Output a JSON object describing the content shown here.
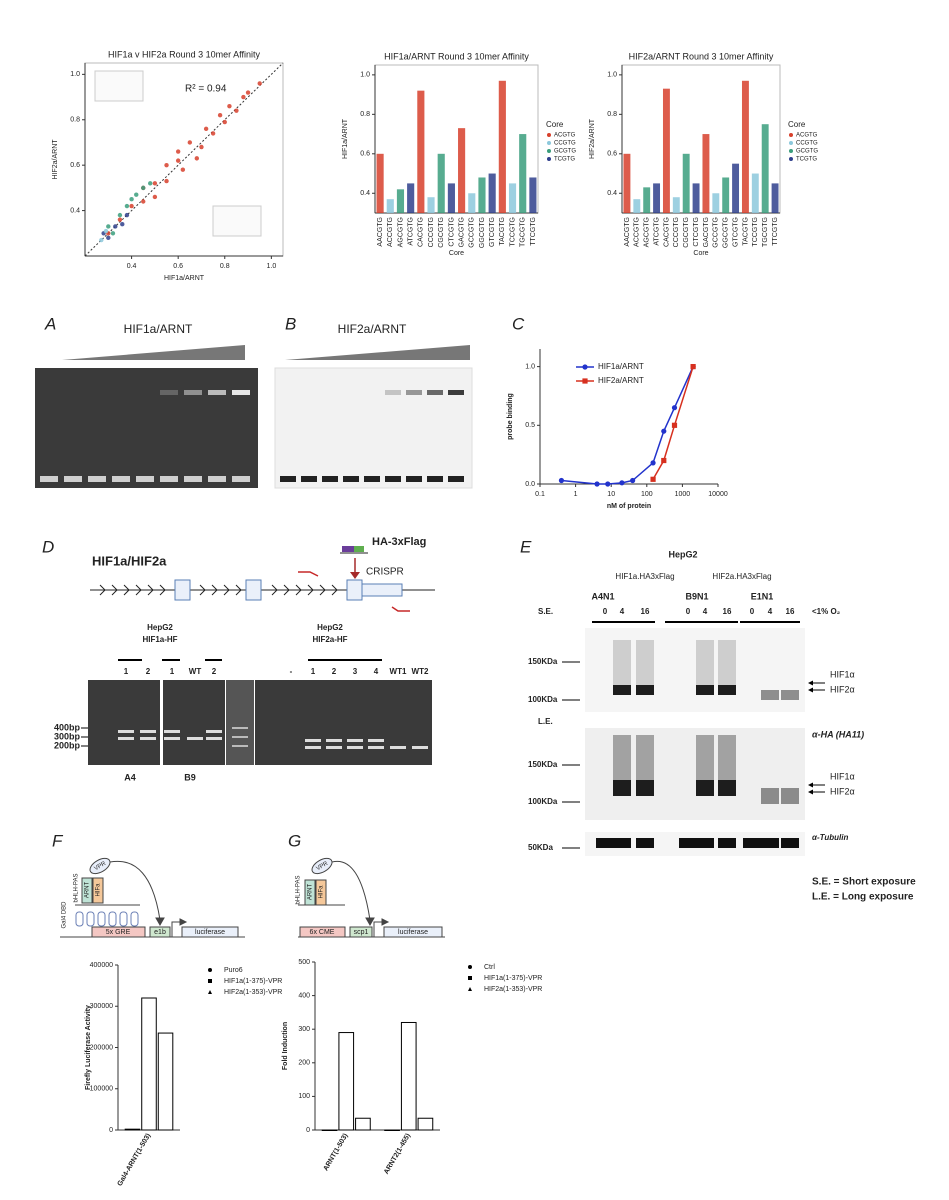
{
  "chart_data": [
    {
      "type": "scatter",
      "title": "HIF1a v HIF2a Round 3 10mer Affinity",
      "x_label": "HIF1a/ARNT",
      "y_label": "HIF2a/ARNT",
      "annotation": "R² = 0.94",
      "xlim": [
        0.2,
        1.05
      ],
      "ylim": [
        0.2,
        1.05
      ],
      "xticks": [
        0.4,
        0.6,
        0.8,
        {
          "value": 1,
          "label": "1.0"
        }
      ],
      "yticks": [
        0.4,
        0.6,
        0.8,
        {
          "value": 1,
          "label": "1.0"
        }
      ],
      "series": [
        {
          "color": "#d7402b",
          "x": [
            0.3,
            0.35,
            0.4,
            0.45,
            0.5,
            0.55,
            0.6,
            0.62,
            0.65,
            0.7,
            0.72,
            0.75,
            0.78,
            0.8,
            0.82,
            0.85,
            0.88,
            0.9,
            0.95,
            0.55,
            0.45,
            0.68,
            0.6,
            0.5
          ],
          "values": [
            0.3,
            0.36,
            0.42,
            0.44,
            0.52,
            0.53,
            0.62,
            0.58,
            0.7,
            0.68,
            0.76,
            0.74,
            0.82,
            0.79,
            0.86,
            0.84,
            0.9,
            0.92,
            0.96,
            0.6,
            0.5,
            0.63,
            0.66,
            0.46
          ]
        },
        {
          "color": "#3a9e7c",
          "x": [
            0.3,
            0.35,
            0.38,
            0.42,
            0.45,
            0.32,
            0.4,
            0.48
          ],
          "values": [
            0.33,
            0.38,
            0.42,
            0.47,
            0.5,
            0.3,
            0.45,
            0.52
          ]
        },
        {
          "color": "#2f3f8c",
          "x": [
            0.28,
            0.3,
            0.33,
            0.36,
            0.38
          ],
          "values": [
            0.3,
            0.28,
            0.33,
            0.34,
            0.38
          ]
        },
        {
          "color": "#8cc8dc",
          "x": [
            0.27,
            0.29
          ],
          "values": [
            0.27,
            0.31
          ]
        }
      ]
    },
    {
      "type": "strip",
      "title": "HIF1a/ARNT Round 3 10mer Affinity",
      "x_label": "Core",
      "y_label": "HIF1a/ARNT",
      "legend_title": "Core",
      "categories": [
        "AACGTG",
        "ACCGTG",
        "AGCGTG",
        "ATCGTG",
        "CACGTG",
        "CCCGTG",
        "CGCGTG",
        "CTCGTG",
        "GACGTG",
        "GCCGTG",
        "GGCGTG",
        "GTCGTG",
        "TACGTG",
        "TCCGTG",
        "TGCGTG",
        "TTCGTG"
      ],
      "ylim": [
        0.3,
        1.05
      ],
      "yticks": [
        0.4,
        0.6,
        0.8,
        {
          "value": 1,
          "label": "1.0"
        }
      ],
      "series": [
        {
          "name": "ACGTG",
          "color": "#d7402b",
          "values": [
            0.6,
            null,
            null,
            null,
            0.92,
            null,
            null,
            null,
            0.73,
            null,
            null,
            null,
            0.97,
            null,
            null,
            null
          ]
        },
        {
          "name": "CCGTG",
          "color": "#8cc8dc",
          "values": [
            null,
            0.37,
            null,
            null,
            null,
            0.38,
            null,
            null,
            null,
            0.4,
            null,
            null,
            null,
            0.45,
            null,
            null
          ]
        },
        {
          "name": "GCGTG",
          "color": "#3a9e7c",
          "values": [
            null,
            null,
            0.42,
            null,
            null,
            null,
            0.6,
            null,
            null,
            null,
            0.48,
            null,
            null,
            null,
            0.7,
            null
          ]
        },
        {
          "name": "TCGTG",
          "color": "#2f3f8c",
          "values": [
            null,
            null,
            null,
            0.45,
            null,
            null,
            null,
            0.45,
            null,
            null,
            null,
            0.5,
            null,
            null,
            null,
            0.48
          ]
        }
      ]
    },
    {
      "type": "strip",
      "title": "HIF2a/ARNT Round 3 10mer Affinity",
      "x_label": "Core",
      "y_label": "HIF2a/ARNT",
      "legend_title": "Core",
      "categories": [
        "AACGTG",
        "ACCGTG",
        "AGCGTG",
        "ATCGTG",
        "CACGTG",
        "CCCGTG",
        "CGCGTG",
        "CTCGTG",
        "GACGTG",
        "GCCGTG",
        "GGCGTG",
        "GTCGTG",
        "TACGTG",
        "TCCGTG",
        "TGCGTG",
        "TTCGTG"
      ],
      "ylim": [
        0.3,
        1.05
      ],
      "yticks": [
        0.4,
        0.6,
        0.8,
        {
          "value": 1,
          "label": "1.0"
        }
      ],
      "series": [
        {
          "name": "ACGTG",
          "color": "#d7402b",
          "values": [
            0.6,
            null,
            null,
            null,
            0.93,
            null,
            null,
            null,
            0.7,
            null,
            null,
            null,
            0.97,
            null,
            null,
            null
          ]
        },
        {
          "name": "CCGTG",
          "color": "#8cc8dc",
          "values": [
            null,
            0.37,
            null,
            null,
            null,
            0.38,
            null,
            null,
            null,
            0.4,
            null,
            null,
            null,
            0.5,
            null,
            null
          ]
        },
        {
          "name": "GCGTG",
          "color": "#3a9e7c",
          "values": [
            null,
            null,
            0.43,
            null,
            null,
            null,
            0.6,
            null,
            null,
            null,
            0.48,
            null,
            null,
            null,
            0.75,
            null
          ]
        },
        {
          "name": "TCGTG",
          "color": "#2f3f8c",
          "values": [
            null,
            null,
            null,
            0.45,
            null,
            null,
            null,
            0.45,
            null,
            null,
            null,
            0.55,
            null,
            null,
            null,
            0.45
          ]
        }
      ]
    },
    {
      "type": "line",
      "x_label": "nM of protein",
      "y_label": "probe binding",
      "xlog": true,
      "xlim": [
        0.1,
        10000
      ],
      "ylim": [
        0,
        1.15
      ],
      "xticks": [
        0.1,
        1,
        10,
        100,
        1000,
        10000
      ],
      "yticks": [
        {
          "value": 0,
          "label": "0.0"
        },
        0.5,
        {
          "value": 1,
          "label": "1.0"
        }
      ],
      "series": [
        {
          "name": "HIF1a/ARNT",
          "color": "#2233cc",
          "marker": "circle",
          "x": [
            0.4,
            4,
            8,
            20,
            40,
            150,
            300,
            600,
            2000
          ],
          "values": [
            0.03,
            0,
            0,
            0.01,
            0.03,
            0.18,
            0.45,
            0.65,
            1
          ]
        },
        {
          "name": "HIF2a/ARNT",
          "color": "#d7301f",
          "marker": "square",
          "x": [
            150,
            300,
            600,
            2000
          ],
          "values": [
            0.04,
            0.2,
            0.5,
            1
          ]
        }
      ]
    },
    {
      "type": "bar",
      "y_label": "Firefly Luciferase Activity",
      "categories": [
        "Gal4-ARNT(1-503)"
      ],
      "ylim": [
        0,
        400000
      ],
      "yticks": [
        0,
        100000,
        200000,
        300000,
        400000
      ],
      "series": [
        {
          "name": "Puro6",
          "color": "#000000",
          "marker": "circle",
          "values": [
            2000
          ]
        },
        {
          "name": "HIF1a(1-375)-VPR",
          "color": "#000000",
          "marker": "square",
          "values": [
            320000
          ]
        },
        {
          "name": "HIF2a(1-353)-VPR",
          "color": "#000000",
          "marker": "triangle",
          "values": [
            235000
          ]
        }
      ]
    },
    {
      "type": "bar",
      "y_label": "Fold Induction",
      "categories": [
        "ARNT(1-503)",
        "ARNT2(1-455)"
      ],
      "ylim": [
        0,
        500
      ],
      "yticks": [
        0,
        100,
        200,
        300,
        400,
        500
      ],
      "series": [
        {
          "name": "Ctrl",
          "color": "#000000",
          "marker": "circle",
          "values": [
            0,
            0
          ]
        },
        {
          "name": "HIF1a(1-375)-VPR",
          "color": "#000000",
          "marker": "square",
          "values": [
            290,
            320
          ]
        },
        {
          "name": "HIF2a(1-353)-VPR",
          "color": "#000000",
          "marker": "triangle",
          "values": [
            35,
            35
          ]
        }
      ]
    }
  ],
  "panel_labels": [
    "A",
    "B",
    "C",
    "D",
    "E",
    "F",
    "G"
  ],
  "emsa": {
    "gel_a_title": "HIF1a/ARNT",
    "gel_b_title": "HIF2a/ARNT"
  },
  "crispr": {
    "gene": "HIF1a/HIF2a",
    "tag": "HA-3xFlag",
    "crispr": "CRISPR",
    "gel1_title": [
      "HepG2",
      "HIF1a-HF"
    ],
    "gel2_title": [
      "HepG2",
      "HIF2a-HF"
    ],
    "lanes1": [
      "1",
      "2",
      "1",
      "WT",
      "2"
    ],
    "lanes2": [
      "-",
      "1",
      "2",
      "3",
      "4",
      "WT1",
      "WT2"
    ],
    "sizes": [
      "400bp",
      "300bp",
      "200bp"
    ],
    "clones": [
      "A4",
      "B9"
    ]
  },
  "western": {
    "cell": "HepG2",
    "constructs": [
      "HIF1a.HA3xFlag",
      "HIF2a.HA3xFlag"
    ],
    "clones": [
      "A4N1",
      "B9N1",
      "E1N1"
    ],
    "se": "S.E.",
    "le": "L.E.",
    "times": [
      "0",
      "4",
      "16",
      "0",
      "4",
      "16",
      "0",
      "4",
      "16"
    ],
    "condition": "<1% O₂",
    "markers_se": [
      "150KDa",
      "100KDa"
    ],
    "markers_le": [
      "150KDa",
      "100KDa"
    ],
    "marker_tub": "50KDa",
    "hif_se": [
      "HIF1α",
      "HIF2α"
    ],
    "hif_le": [
      "HIF1α",
      "HIF2α"
    ],
    "antibody": "α-HA (HA11)",
    "tubulin": "α-Tubulin",
    "notes": [
      "S.E. = Short exposure",
      "L.E. = Long exposure"
    ]
  },
  "reporter_f": {
    "vpr": "VPR",
    "arnt": "ARNT",
    "hif": "HIFa",
    "domain": "bHLH-PAS",
    "dbd": "Gal4 DBD",
    "element": "5x GRE",
    "promoter": "e1b",
    "reporter": "luciferase"
  },
  "reporter_g": {
    "domain": "bHLH-PAS",
    "arnt": "ARNT",
    "hif": "HIFa",
    "vpr": "VPR",
    "element": "6x CME",
    "promoter": "scp1",
    "reporter": "luciferase"
  }
}
